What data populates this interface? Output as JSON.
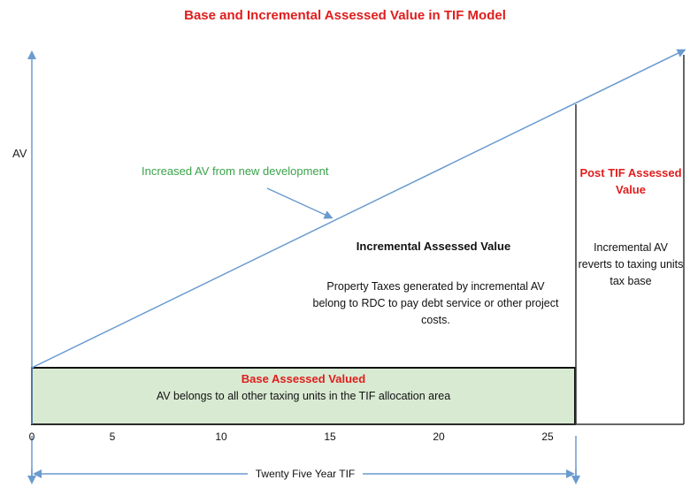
{
  "title": "Base and Incremental Assessed Value in TIF Model",
  "y_axis_label": "AV",
  "increased_label": "Increased AV from new development",
  "incremental": {
    "title": "Incremental Assessed Value",
    "description": "Property Taxes generated by incremental AV belong to RDC to pay debt service or other project costs."
  },
  "post_tif": {
    "title": "Post TIF Assessed Value",
    "description": "Incremental AV reverts to taxing units tax base"
  },
  "base": {
    "title": "Base Assessed Valued",
    "description": "AV belongs to all other taxing units in the TIF allocation area"
  },
  "x_ticks": [
    "0",
    "5",
    "10",
    "15",
    "20",
    "25"
  ],
  "span_label": "Twenty Five Year TIF",
  "colors": {
    "title_red": "#e01d1d",
    "annotation_green": "#3aa34a",
    "axis_blue": "#6a9bcf",
    "base_fill": "#d9ead3"
  }
}
